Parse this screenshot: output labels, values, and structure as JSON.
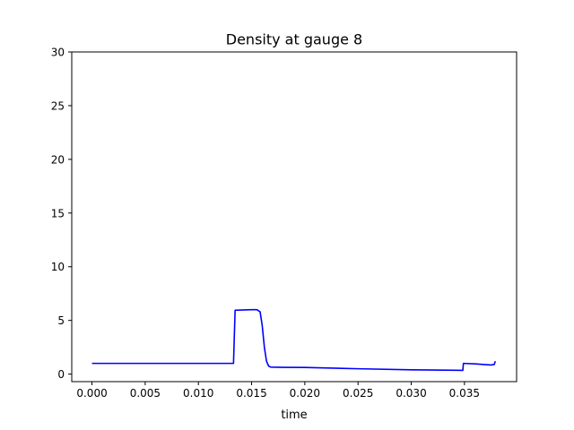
{
  "chart_data": {
    "type": "line",
    "title": "Density at gauge 8",
    "xlabel": "time",
    "ylabel": "",
    "xlim": [
      -0.0019,
      0.0399
    ],
    "ylim": [
      -0.7,
      30
    ],
    "grid": false,
    "legend": "none",
    "xticks": [
      0.0,
      0.005,
      0.01,
      0.015,
      0.02,
      0.025,
      0.03,
      0.035
    ],
    "xtick_labels": [
      "0.000",
      "0.005",
      "0.010",
      "0.015",
      "0.020",
      "0.025",
      "0.030",
      "0.035"
    ],
    "yticks": [
      0,
      5,
      10,
      15,
      20,
      25,
      30
    ],
    "ytick_labels": [
      "0",
      "5",
      "10",
      "15",
      "20",
      "25",
      "30"
    ],
    "series": [
      {
        "color": "#0000ff",
        "points": [
          [
            0.0,
            1.0
          ],
          [
            0.005,
            1.0
          ],
          [
            0.01,
            1.0
          ],
          [
            0.0133,
            1.0
          ],
          [
            0.01345,
            5.95
          ],
          [
            0.015,
            6.0
          ],
          [
            0.0155,
            6.0
          ],
          [
            0.0158,
            5.8
          ],
          [
            0.016,
            4.5
          ],
          [
            0.0162,
            2.5
          ],
          [
            0.0164,
            1.2
          ],
          [
            0.0166,
            0.75
          ],
          [
            0.0168,
            0.65
          ],
          [
            0.018,
            0.63
          ],
          [
            0.02,
            0.62
          ],
          [
            0.025,
            0.5
          ],
          [
            0.03,
            0.4
          ],
          [
            0.03485,
            0.35
          ],
          [
            0.0349,
            1.0
          ],
          [
            0.036,
            0.95
          ],
          [
            0.0375,
            0.85
          ],
          [
            0.0378,
            0.9
          ],
          [
            0.0379,
            1.2
          ]
        ]
      }
    ]
  }
}
